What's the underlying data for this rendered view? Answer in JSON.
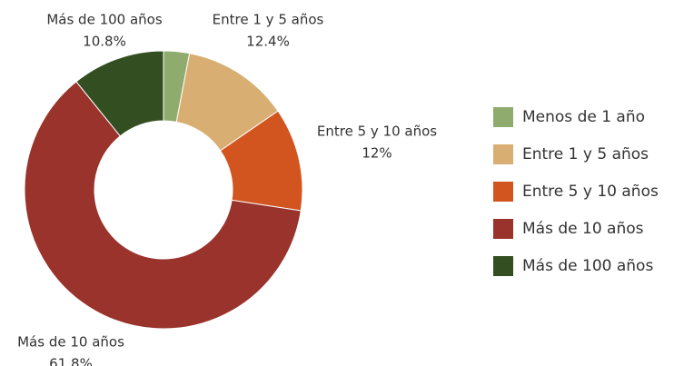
{
  "chart_data": {
    "type": "donut",
    "categories": [
      "Menos de 1 año",
      "Entre 1 y 5 años",
      "Entre 5 y 10 años",
      "Más de 10 años",
      "Más de 100 años"
    ],
    "values": [
      3,
      12.4,
      12,
      61.8,
      10.8
    ],
    "value_labels": [
      null,
      "12.4%",
      "12%",
      "61.8%",
      "10.8%"
    ],
    "colors": [
      "#8fac6e",
      "#d8ae72",
      "#d2541f",
      "#99332b",
      "#334f22"
    ],
    "legend": "right"
  }
}
